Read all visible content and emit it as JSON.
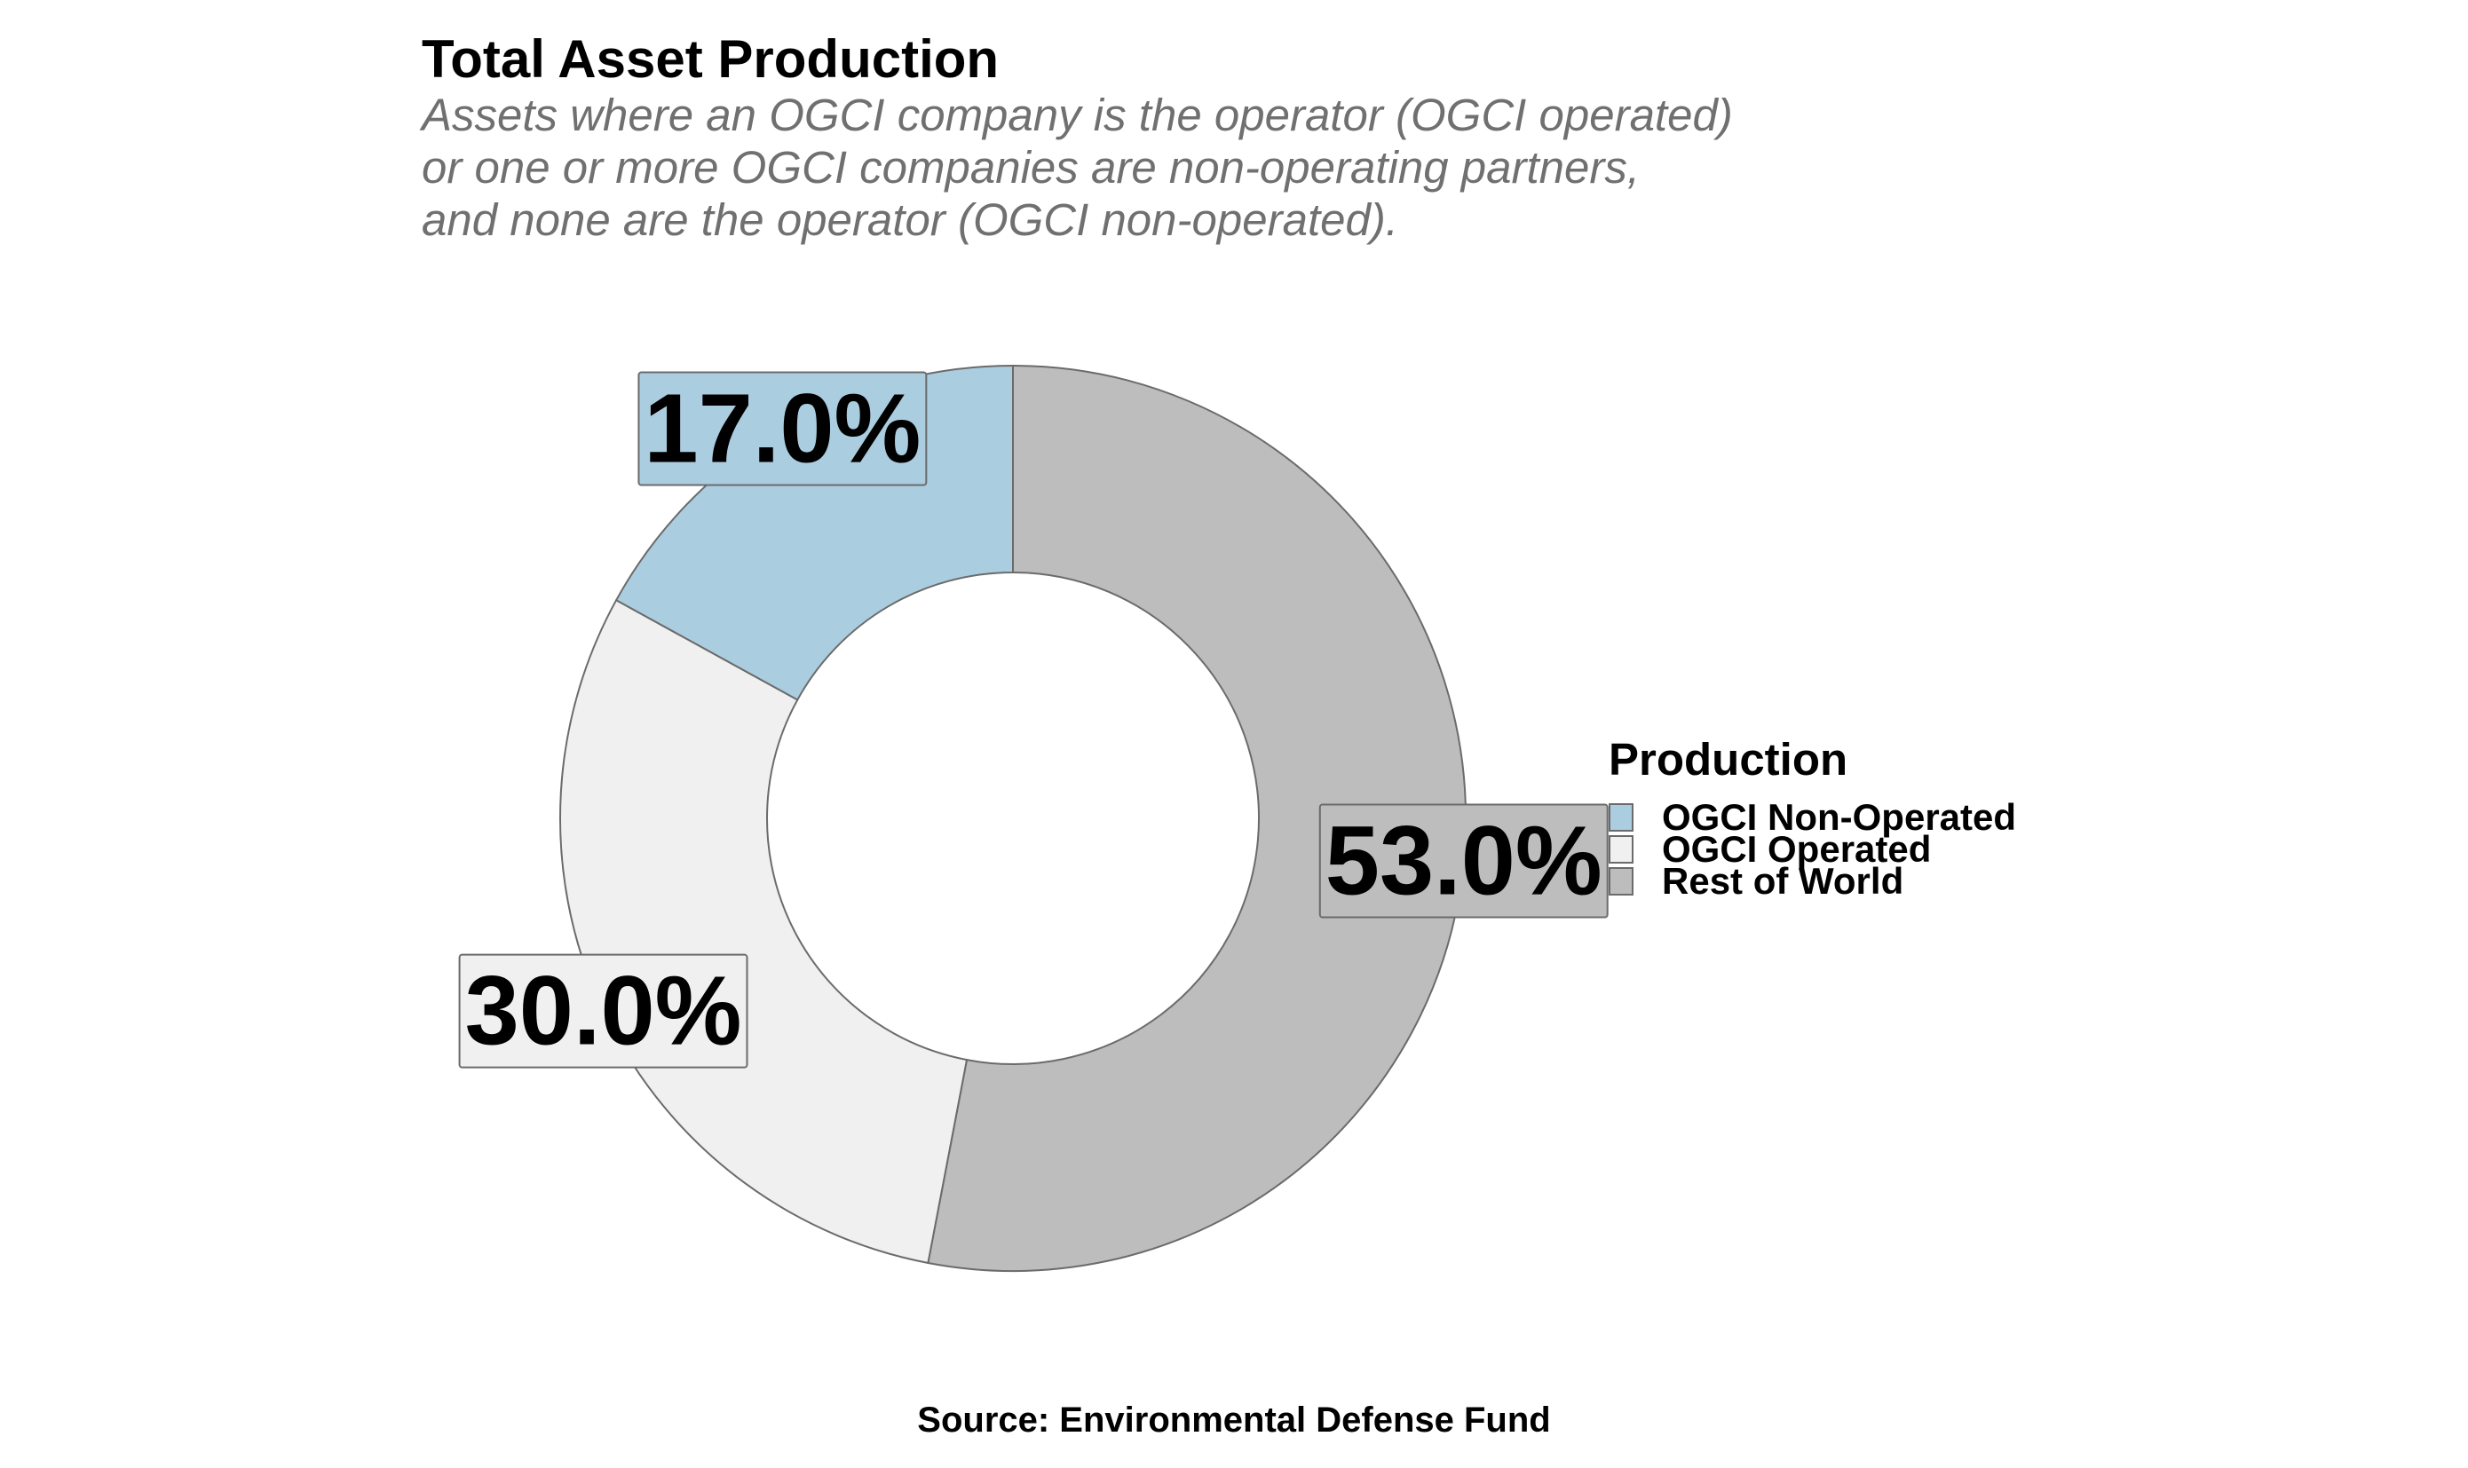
{
  "title": "Total Asset Production",
  "subtitle": [
    "Assets where an OGCI company is the operator (OGCI operated)",
    "or one or more OGCI companies are non-operating partners,",
    "and none are the operator (OGCI non-operated)."
  ],
  "caption": "Source: Environmental Defense Fund",
  "legend": {
    "title": "Production",
    "position": "right"
  },
  "chart_data": {
    "type": "pie",
    "variant": "donut",
    "categories": [
      "OGCI Non-Operated",
      "OGCI Operated",
      "Rest of World"
    ],
    "values": [
      17.0,
      30.0,
      53.0
    ],
    "labels": [
      "17.0%",
      "30.0%",
      "53.0%"
    ],
    "colors": [
      "#abcde0",
      "#f0f0f0",
      "#bdbdbd"
    ],
    "stroke_color": "#6b6b6b",
    "order": "counter-clockwise from top"
  }
}
